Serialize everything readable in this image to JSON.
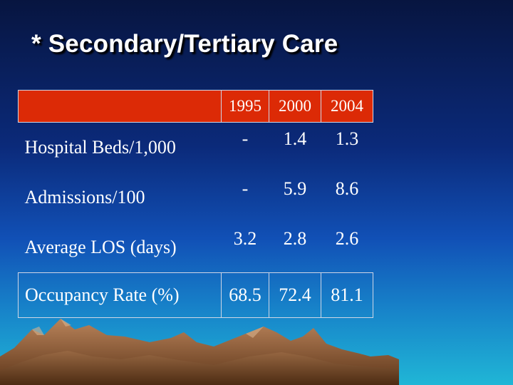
{
  "slide": {
    "title": "* Secondary/Tertiary Care"
  },
  "table": {
    "years": [
      "1995",
      "2000",
      "2004"
    ],
    "rows": [
      {
        "label": "Hospital Beds/1,000",
        "values": [
          "-",
          "1.4",
          "1.3"
        ]
      },
      {
        "label": "Admissions/100",
        "values": [
          "-",
          "5.9",
          "8.6"
        ]
      },
      {
        "label": "Average LOS (days)",
        "values": [
          "3.2",
          "2.8",
          "2.6"
        ]
      },
      {
        "label": "Occupancy Rate (%)",
        "values": [
          "68.5",
          "72.4",
          "81.1"
        ]
      }
    ]
  },
  "colors": {
    "background_top": "#071540",
    "background_bottom": "#20b6d6",
    "header_fill": "#dc2a06",
    "text": "#ffffff",
    "mountain": "#8a5a38"
  }
}
